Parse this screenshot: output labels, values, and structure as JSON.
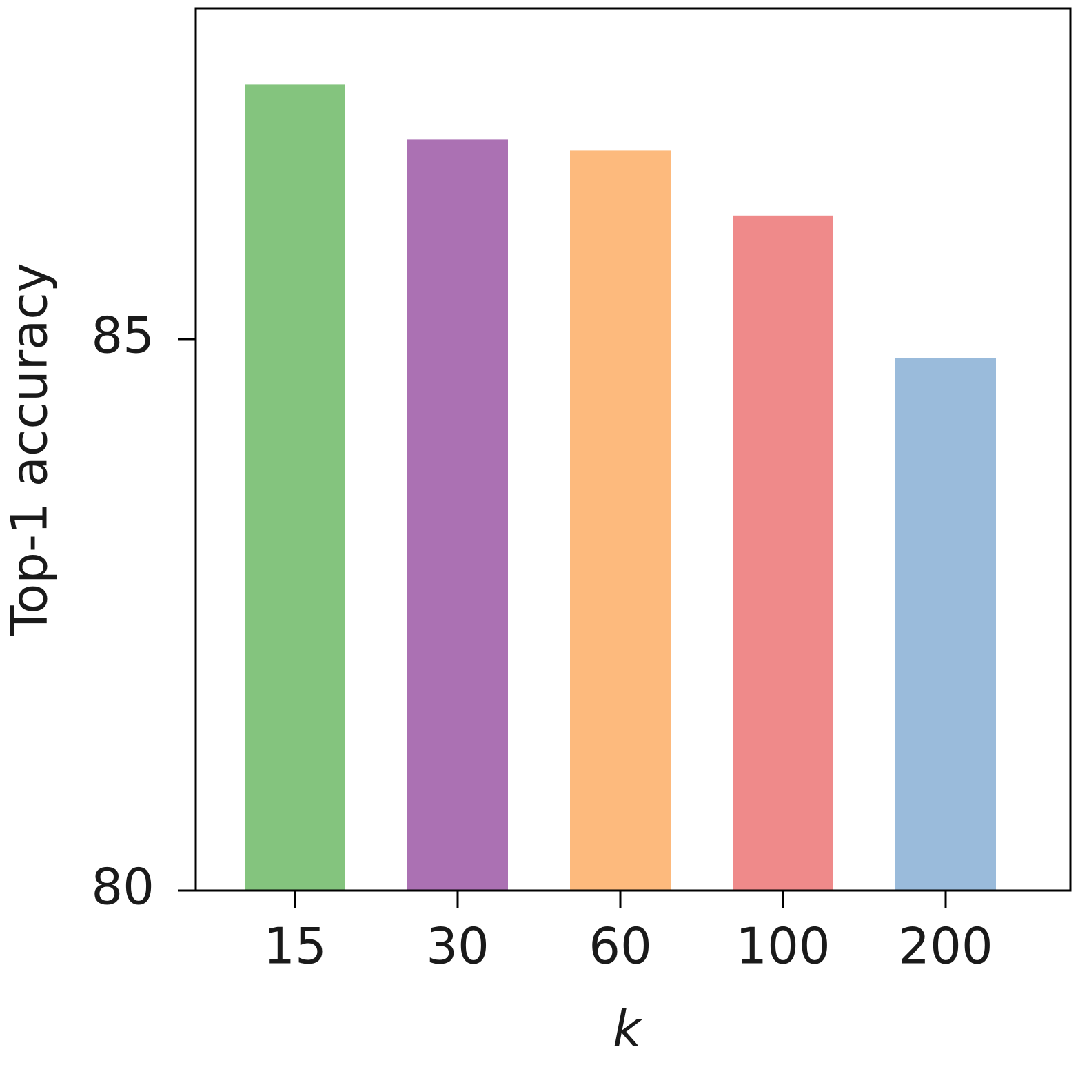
{
  "chart_data": {
    "type": "bar",
    "categories": [
      "15",
      "30",
      "60",
      "100",
      "200"
    ],
    "values": [
      87.31,
      86.81,
      86.71,
      86.12,
      84.83
    ],
    "colors": [
      "#84c47e",
      "#ab71b3",
      "#fdba7d",
      "#ef8a8a",
      "#9abbdb"
    ],
    "xlabel": "k",
    "ylabel": "Top-1 accuracy",
    "ylim": [
      80,
      88
    ],
    "yticks": [
      80,
      85
    ],
    "grid": false
  }
}
